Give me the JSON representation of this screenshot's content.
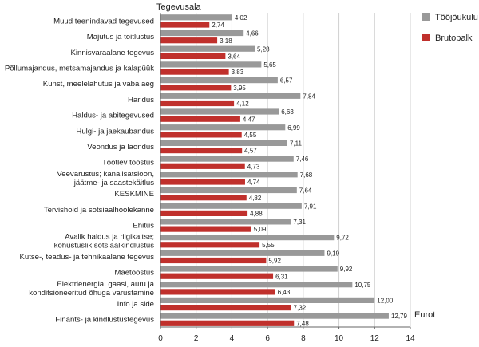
{
  "chart_data": {
    "type": "bar",
    "orientation": "horizontal",
    "title": "",
    "ylabel": "Tegevusala",
    "xlabel": "Eurot",
    "xlim": [
      0,
      14
    ],
    "xticks": [
      0,
      2,
      4,
      6,
      8,
      10,
      12,
      14
    ],
    "grid": true,
    "legend_position": "right",
    "categories": [
      [
        "Muud teenindavad tegevused"
      ],
      [
        "Majutus ja toitlustus"
      ],
      [
        "Kinnisvaraalane tegevus"
      ],
      [
        "Põllumajandus, metsamajandus ja kalapüük"
      ],
      [
        "Kunst, meelelahutus ja vaba aeg"
      ],
      [
        "Haridus"
      ],
      [
        "Haldus- ja abitegevused"
      ],
      [
        "Hulgi- ja jaekaubandus"
      ],
      [
        "Veondus ja laondus"
      ],
      [
        "Töötlev tööstus"
      ],
      [
        "Veevarustus; kanalisatsioon,",
        "jäätme- ja saastekäitlus"
      ],
      [
        "KESKMINE"
      ],
      [
        "Tervishoid ja sotsiaalhoolekanne"
      ],
      [
        "Ehitus"
      ],
      [
        "Avalik haldus ja riigikaitse;",
        "kohustuslik sotsiaalkindlustus"
      ],
      [
        "Kutse-, teadus- ja tehnikaalane tegevus"
      ],
      [
        "Mäetööstus"
      ],
      [
        "Elektrienergia, gaasi, auru ja",
        "konditsioneeritud õhuga varustamine"
      ],
      [
        "Info ja side"
      ],
      [
        "Finants- ja kindlustustegevus"
      ]
    ],
    "series": [
      {
        "name": "Tööjõukulu",
        "color": "#999999",
        "values": [
          4.02,
          4.66,
          5.28,
          5.65,
          6.57,
          7.84,
          6.63,
          6.99,
          7.11,
          7.46,
          7.68,
          7.64,
          7.91,
          7.31,
          9.72,
          9.19,
          9.92,
          10.75,
          12.0,
          12.79
        ]
      },
      {
        "name": "Brutopalk",
        "color": "#c0302c",
        "values": [
          2.74,
          3.18,
          3.64,
          3.83,
          3.95,
          4.12,
          4.47,
          4.55,
          4.57,
          4.73,
          4.74,
          4.82,
          4.88,
          5.09,
          5.55,
          5.92,
          6.31,
          6.43,
          7.32,
          7.48
        ]
      }
    ]
  }
}
